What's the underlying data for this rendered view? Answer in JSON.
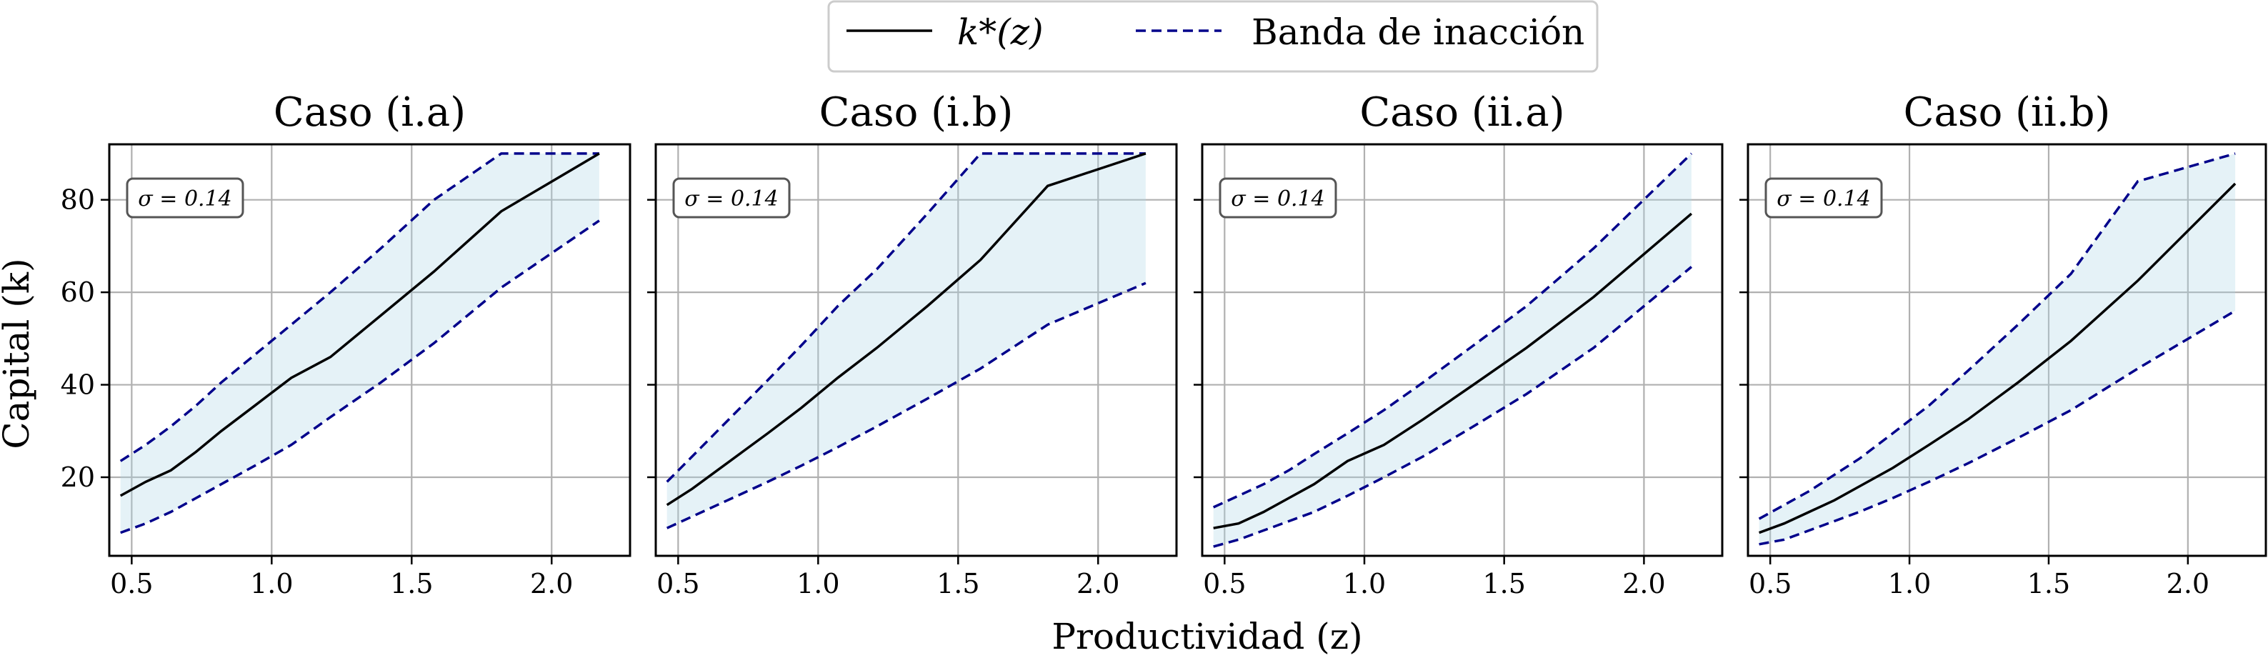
{
  "figure": {
    "xlabel": "Productividad (z)",
    "ylabel": "Capital (k)"
  },
  "legend": {
    "placement": "top-center",
    "entries": [
      {
        "label": "k*(z)",
        "style": "solid",
        "color": "#000000"
      },
      {
        "label": "Banda de inacción",
        "style": "dashed",
        "color": "#00008b"
      }
    ]
  },
  "colors": {
    "kstar": "#000000",
    "band_line": "#00008b",
    "band_fill": "#add8e6",
    "grid": "#b0b0b0"
  },
  "chart_data": [
    {
      "type": "line",
      "title": "Caso (i.a)",
      "annotation": "σ = 0.14",
      "xlim": [
        0.42,
        2.28
      ],
      "ylim": [
        3,
        92
      ],
      "xticks": [
        0.5,
        1.0,
        1.5,
        2.0
      ],
      "yticks": [
        20,
        40,
        60,
        80
      ],
      "xtick_labels": [
        "0.5",
        "1.0",
        "1.5",
        "2.0"
      ],
      "ytick_labels": [
        "20",
        "40",
        "60",
        "80"
      ],
      "grid": true,
      "x": [
        0.46,
        0.55,
        0.64,
        0.73,
        0.82,
        0.94,
        1.07,
        1.21,
        1.39,
        1.58,
        1.82,
        2.17
      ],
      "series": [
        {
          "name": "k*(z)",
          "values": [
            16,
            19,
            21.5,
            25.5,
            30,
            35.5,
            41.5,
            46,
            55,
            64.5,
            77.5,
            90
          ]
        },
        {
          "name": "upper",
          "values": [
            23.5,
            27,
            31,
            35.5,
            40.5,
            46.5,
            53,
            60,
            69.5,
            80,
            90,
            90
          ]
        },
        {
          "name": "lower",
          "values": [
            8,
            10,
            12.5,
            15.5,
            18.5,
            22.5,
            27,
            33,
            40.5,
            49,
            61,
            75.5
          ]
        }
      ]
    },
    {
      "type": "line",
      "title": "Caso (i.b)",
      "annotation": "σ = 0.14",
      "xlim": [
        0.42,
        2.28
      ],
      "ylim": [
        3,
        92
      ],
      "xticks": [
        0.5,
        1.0,
        1.5,
        2.0
      ],
      "yticks": [
        20,
        40,
        60,
        80
      ],
      "xtick_labels": [
        "0.5",
        "1.0",
        "1.5",
        "2.0"
      ],
      "ytick_labels": [
        "20",
        "40",
        "60",
        "80"
      ],
      "grid": true,
      "x": [
        0.46,
        0.55,
        0.64,
        0.73,
        0.82,
        0.94,
        1.07,
        1.21,
        1.39,
        1.58,
        1.82,
        2.17
      ],
      "series": [
        {
          "name": "k*(z)",
          "values": [
            14,
            17.5,
            21.5,
            25.5,
            29.5,
            35,
            41.5,
            48,
            57,
            67,
            83,
            90
          ]
        },
        {
          "name": "upper",
          "values": [
            19,
            24.5,
            30,
            35.5,
            41,
            48.5,
            57,
            65,
            77,
            90,
            90,
            90
          ]
        },
        {
          "name": "lower",
          "values": [
            9,
            11.5,
            14,
            16.5,
            19,
            22.5,
            26.5,
            31,
            37,
            43.5,
            53,
            62
          ]
        }
      ]
    },
    {
      "type": "line",
      "title": "Caso (ii.a)",
      "annotation": "σ = 0.14",
      "xlim": [
        0.42,
        2.28
      ],
      "ylim": [
        3,
        92
      ],
      "xticks": [
        0.5,
        1.0,
        1.5,
        2.0
      ],
      "yticks": [
        20,
        40,
        60,
        80
      ],
      "xtick_labels": [
        "0.5",
        "1.0",
        "1.5",
        "2.0"
      ],
      "ytick_labels": [
        "20",
        "40",
        "60",
        "80"
      ],
      "grid": true,
      "x": [
        0.46,
        0.55,
        0.64,
        0.73,
        0.82,
        0.94,
        1.07,
        1.21,
        1.39,
        1.58,
        1.82,
        2.17
      ],
      "series": [
        {
          "name": "k*(z)",
          "values": [
            9,
            10,
            12.5,
            15.5,
            18.5,
            23.5,
            27,
            32.5,
            40,
            48,
            59,
            77
          ]
        },
        {
          "name": "upper",
          "values": [
            13.5,
            16,
            18.5,
            21.5,
            25,
            29.5,
            34.5,
            40.5,
            48.5,
            57,
            69.5,
            90
          ]
        },
        {
          "name": "lower",
          "values": [
            5,
            6.5,
            8.5,
            10.5,
            12.5,
            16,
            20,
            24.5,
            31,
            38,
            48,
            65.5
          ]
        }
      ]
    },
    {
      "type": "line",
      "title": "Caso (ii.b)",
      "annotation": "σ = 0.14",
      "xlim": [
        0.42,
        2.28
      ],
      "ylim": [
        3,
        92
      ],
      "xticks": [
        0.5,
        1.0,
        1.5,
        2.0
      ],
      "yticks": [
        20,
        40,
        60,
        80
      ],
      "xtick_labels": [
        "0.5",
        "1.0",
        "1.5",
        "2.0"
      ],
      "ytick_labels": [
        "20",
        "40",
        "60",
        "80"
      ],
      "grid": true,
      "x": [
        0.46,
        0.55,
        0.64,
        0.73,
        0.82,
        0.94,
        1.07,
        1.21,
        1.39,
        1.58,
        1.82,
        2.17
      ],
      "series": [
        {
          "name": "k*(z)",
          "values": [
            8,
            10,
            12.5,
            15,
            18,
            22,
            27,
            32.5,
            40.5,
            49.5,
            62.5,
            83.5
          ]
        },
        {
          "name": "upper",
          "values": [
            11,
            14,
            17,
            20.5,
            24,
            29.5,
            35.5,
            43,
            53,
            64,
            84,
            90
          ]
        },
        {
          "name": "lower",
          "values": [
            5.5,
            6.5,
            8.5,
            10.5,
            12.5,
            15.5,
            19,
            23,
            28.5,
            34.5,
            43.5,
            56
          ]
        }
      ]
    }
  ]
}
